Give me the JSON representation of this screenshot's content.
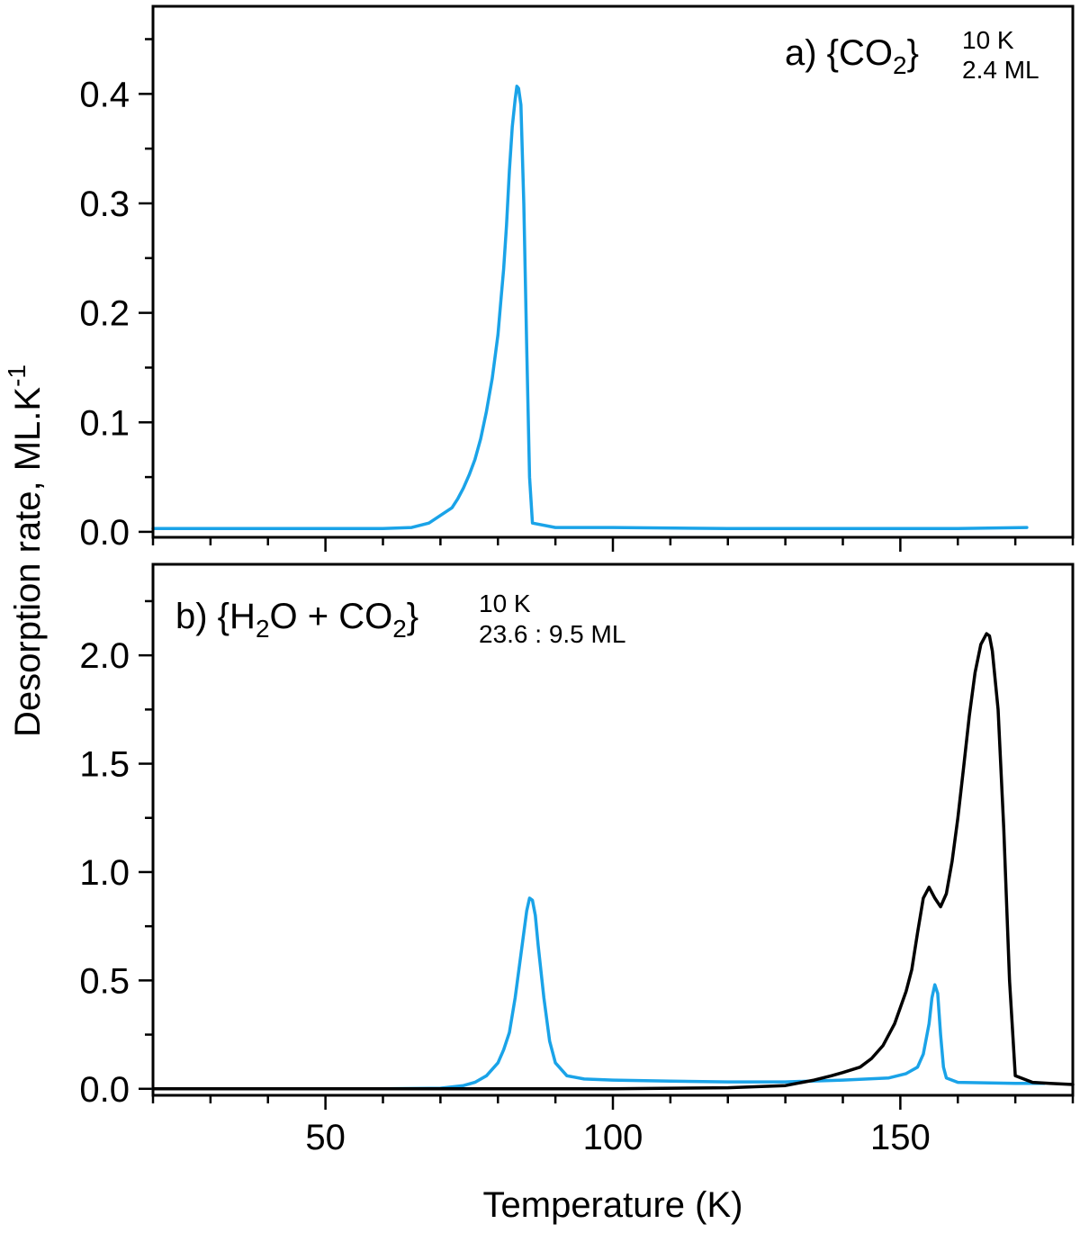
{
  "figure": {
    "xlabel": "Temperature (K)",
    "ylabel_main": "Desorption rate, ML.K",
    "ylabel_sup": "-1"
  },
  "chart_data": [
    {
      "type": "line",
      "panel": "a",
      "label": {
        "prefix": "a) {CO",
        "sub": "2",
        "close": "}",
        "sup": "10 K",
        "subright": "2.4 ML"
      },
      "xlim": [
        20,
        180
      ],
      "ylim": [
        -0.005,
        0.48
      ],
      "xticks": [
        50,
        100,
        150
      ],
      "yticks": [
        0.0,
        0.1,
        0.2,
        0.3,
        0.4
      ],
      "ytick_labels": [
        "0.0",
        "0.1",
        "0.2",
        "0.3",
        "0.4"
      ],
      "series": [
        {
          "color": "#1aa3e8",
          "x": [
            20,
            30,
            40,
            50,
            60,
            65,
            68,
            70,
            72,
            73,
            74,
            75,
            76,
            77,
            78,
            79,
            80,
            80.5,
            81,
            81.5,
            82,
            82.5,
            83,
            83.3,
            83.6,
            84,
            84.5,
            85,
            85.5,
            86,
            90,
            100,
            120,
            140,
            160,
            172
          ],
          "y": [
            0.003,
            0.003,
            0.003,
            0.003,
            0.003,
            0.004,
            0.008,
            0.015,
            0.022,
            0.03,
            0.04,
            0.052,
            0.066,
            0.085,
            0.11,
            0.14,
            0.18,
            0.21,
            0.24,
            0.28,
            0.33,
            0.37,
            0.395,
            0.407,
            0.405,
            0.39,
            0.3,
            0.17,
            0.05,
            0.008,
            0.004,
            0.004,
            0.003,
            0.003,
            0.003,
            0.004
          ]
        }
      ]
    },
    {
      "type": "line",
      "panel": "b",
      "label": {
        "prefix": "b) {H",
        "sub1": "2",
        "mid": "O + CO",
        "sub": "2",
        "close": "}",
        "sup": "10 K",
        "subright": "23.6 : 9.5 ML"
      },
      "xlim": [
        20,
        180
      ],
      "ylim": [
        -0.03,
        2.42
      ],
      "xticks": [
        50,
        100,
        150
      ],
      "yticks": [
        0.0,
        0.5,
        1.0,
        1.5,
        2.0
      ],
      "ytick_labels": [
        "0.0",
        "0.5",
        "1.0",
        "1.5",
        "2.0"
      ],
      "series": [
        {
          "color": "#1aa3e8",
          "x": [
            20,
            40,
            60,
            70,
            74,
            76,
            78,
            80,
            81,
            82,
            83,
            84,
            85,
            85.5,
            86,
            86.5,
            87,
            88,
            89,
            90,
            92,
            95,
            100,
            110,
            120,
            130,
            140,
            148,
            151,
            153,
            154,
            155,
            155.5,
            156,
            156.5,
            157,
            157.5,
            158,
            160,
            170,
            175
          ],
          "y": [
            0.0,
            0.0,
            0.0,
            0.003,
            0.015,
            0.03,
            0.06,
            0.12,
            0.18,
            0.26,
            0.42,
            0.62,
            0.82,
            0.88,
            0.87,
            0.8,
            0.66,
            0.42,
            0.22,
            0.12,
            0.06,
            0.045,
            0.04,
            0.035,
            0.032,
            0.032,
            0.04,
            0.05,
            0.07,
            0.1,
            0.16,
            0.3,
            0.42,
            0.48,
            0.44,
            0.25,
            0.1,
            0.05,
            0.03,
            0.025,
            0.025
          ]
        },
        {
          "color": "#000000",
          "x": [
            20,
            60,
            100,
            120,
            130,
            135,
            138,
            140,
            143,
            145,
            147,
            149,
            151,
            152,
            153,
            154,
            155,
            156,
            157,
            158,
            159,
            160,
            161,
            162,
            163,
            164,
            165,
            165.5,
            166,
            167,
            168,
            169,
            170,
            173,
            176,
            180
          ],
          "y": [
            0.0,
            0.0,
            0.0,
            0.005,
            0.015,
            0.04,
            0.06,
            0.075,
            0.1,
            0.14,
            0.2,
            0.3,
            0.45,
            0.55,
            0.72,
            0.88,
            0.93,
            0.88,
            0.84,
            0.9,
            1.05,
            1.25,
            1.48,
            1.72,
            1.92,
            2.05,
            2.1,
            2.09,
            2.02,
            1.75,
            1.2,
            0.5,
            0.06,
            0.03,
            0.025,
            0.02
          ]
        }
      ]
    }
  ]
}
